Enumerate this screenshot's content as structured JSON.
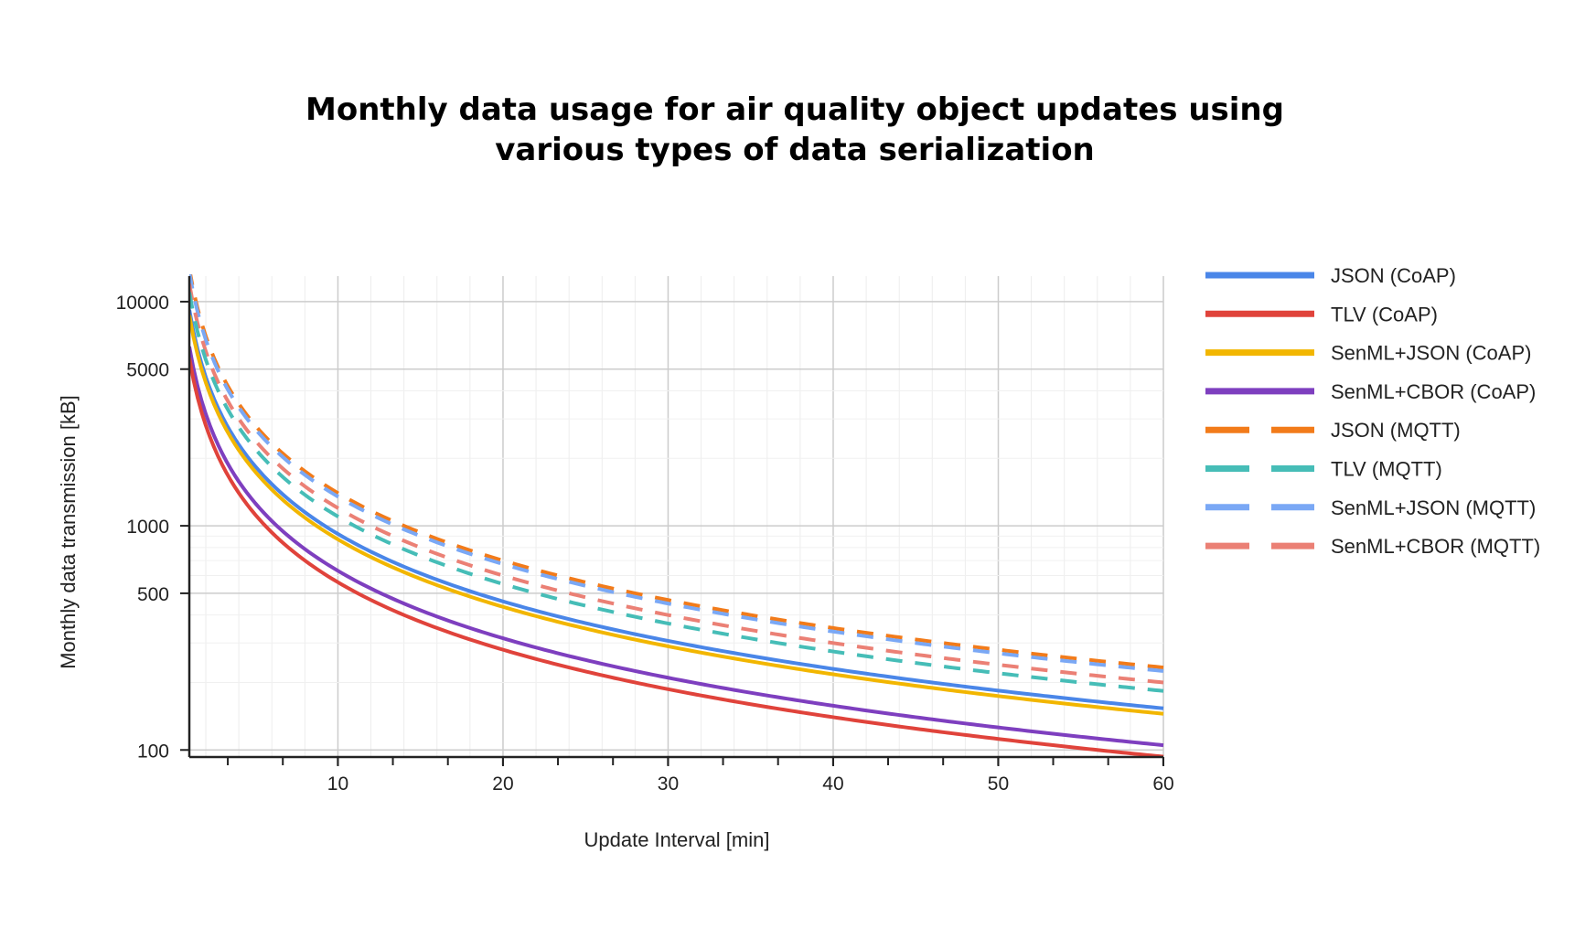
{
  "chart_data": {
    "type": "line",
    "title": [
      "Monthly data usage for air quality object updates using",
      "various types of data serialization"
    ],
    "xlabel": "Update Interval [min]",
    "ylabel": "Monthly data transmission [kB]",
    "xlim": [
      1,
      60
    ],
    "ylim": [
      93,
      13000
    ],
    "yscale": "log",
    "x_ticks": [
      10,
      20,
      30,
      40,
      50,
      60
    ],
    "x_tick_labels": [
      "10",
      "20",
      "30",
      "40",
      "50",
      "60"
    ],
    "y_ticks": [
      100,
      500,
      1000,
      5000,
      10000
    ],
    "y_tick_labels": [
      "100",
      "500",
      "1000",
      "5000",
      "10000"
    ],
    "y_minor_gridlines": [
      200,
      300,
      400,
      600,
      700,
      800,
      900,
      2000,
      3000,
      4000
    ],
    "legend_position": "right",
    "series": [
      {
        "name": "JSON (CoAP)",
        "color": "#4a86e8",
        "dash": "solid",
        "a": 9200
      },
      {
        "name": "TLV (CoAP)",
        "color": "#e0433b",
        "dash": "solid",
        "a": 5600
      },
      {
        "name": "SenML+JSON (CoAP)",
        "color": "#f2b600",
        "dash": "solid",
        "a": 8700
      },
      {
        "name": "SenML+CBOR (CoAP)",
        "color": "#7e3fbf",
        "dash": "solid",
        "a": 6300
      },
      {
        "name": "JSON (MQTT)",
        "color": "#f27b1a",
        "dash": "dashed",
        "a": 14000
      },
      {
        "name": "TLV (MQTT)",
        "color": "#46bdb7",
        "dash": "dashed",
        "a": 11000
      },
      {
        "name": "SenML+JSON (MQTT)",
        "color": "#7aa8f5",
        "dash": "dashed",
        "a": 13500
      },
      {
        "name": "SenML+CBOR (MQTT)",
        "color": "#eb8075",
        "dash": "dashed",
        "a": 12000
      }
    ]
  }
}
